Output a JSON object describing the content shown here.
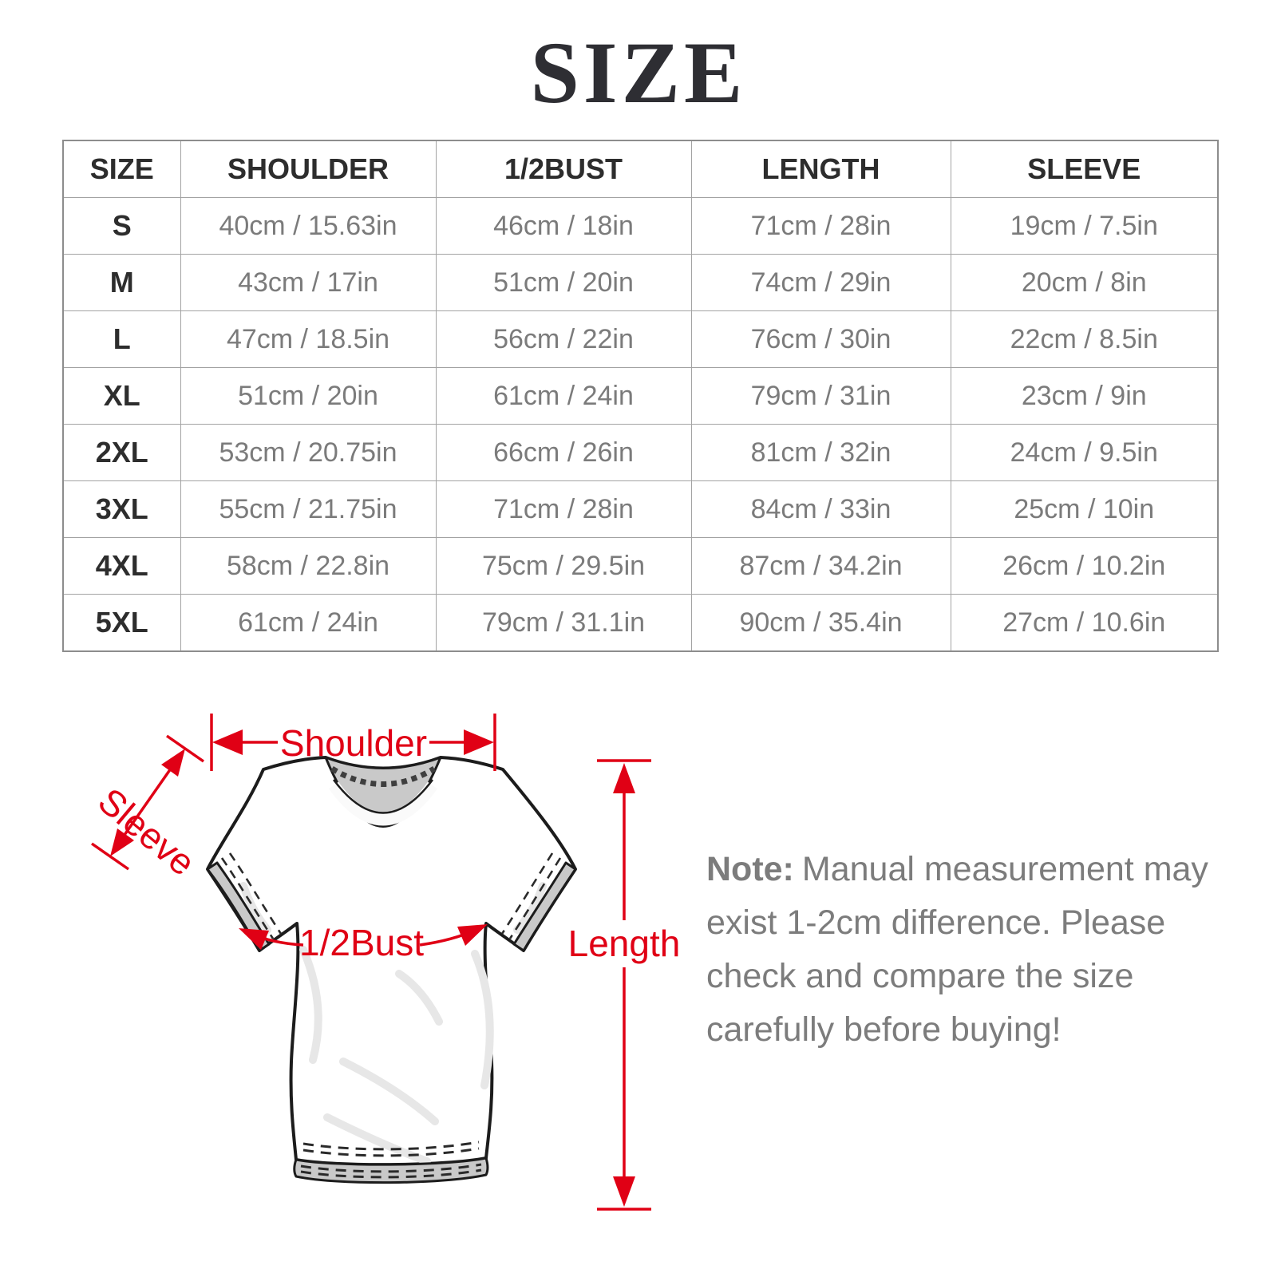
{
  "page": {
    "title": "SIZE"
  },
  "accent_color": "#e00015",
  "size_table": {
    "columns": [
      "SIZE",
      "SHOULDER",
      "1/2BUST",
      "LENGTH",
      "SLEEVE"
    ],
    "rows": [
      {
        "size": "S",
        "shoulder": "40cm / 15.63in",
        "half_bust": "46cm / 18in",
        "length": "71cm / 28in",
        "sleeve": "19cm / 7.5in"
      },
      {
        "size": "M",
        "shoulder": "43cm / 17in",
        "half_bust": "51cm / 20in",
        "length": "74cm / 29in",
        "sleeve": "20cm / 8in"
      },
      {
        "size": "L",
        "shoulder": "47cm / 18.5in",
        "half_bust": "56cm / 22in",
        "length": "76cm / 30in",
        "sleeve": "22cm / 8.5in"
      },
      {
        "size": "XL",
        "shoulder": "51cm / 20in",
        "half_bust": "61cm / 24in",
        "length": "79cm / 31in",
        "sleeve": "23cm / 9in"
      },
      {
        "size": "2XL",
        "shoulder": "53cm / 20.75in",
        "half_bust": "66cm / 26in",
        "length": "81cm / 32in",
        "sleeve": "24cm / 9.5in"
      },
      {
        "size": "3XL",
        "shoulder": "55cm / 21.75in",
        "half_bust": "71cm / 28in",
        "length": "84cm / 33in",
        "sleeve": "25cm / 10in"
      },
      {
        "size": "4XL",
        "shoulder": "58cm / 22.8in",
        "half_bust": "75cm / 29.5in",
        "length": "87cm / 34.2in",
        "sleeve": "26cm / 10.2in"
      },
      {
        "size": "5XL",
        "shoulder": "61cm / 24in",
        "half_bust": "79cm / 31.1in",
        "length": "90cm / 35.4in",
        "sleeve": "27cm / 10.6in"
      }
    ]
  },
  "diagram": {
    "shoulder_label": "Shoulder",
    "sleeve_label": "Sleeve",
    "half_bust_label": "1/2Bust",
    "length_label": "Length"
  },
  "note": {
    "label": "Note:",
    "body": "Manual measurement may exist 1-2cm difference. Please check and compare the size carefully before buying!"
  }
}
